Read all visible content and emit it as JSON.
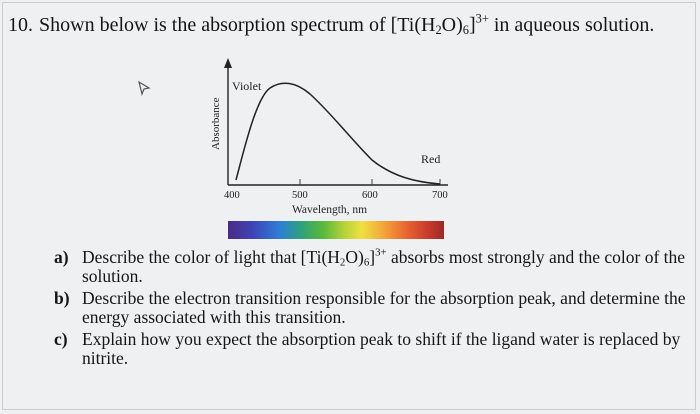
{
  "question": {
    "number": "10.",
    "text_before": "Shown below is the absorption spectrum of [Ti(H",
    "sub1": "2",
    "text_mid1": "O)",
    "sub2": "6",
    "text_mid2": "]",
    "sup": "3+",
    "text_after": " in aqueous solution."
  },
  "figure": {
    "y_axis_label": "Absorbance",
    "violet_label": "Violet",
    "red_label": "Red",
    "tick_400": "400",
    "tick_500": "500",
    "tick_600": "600",
    "tick_700": "700",
    "x_axis_label": "Wavelength, nm"
  },
  "parts": [
    {
      "letter": "a)",
      "pre": "Describe the color of light that [Ti(H",
      "sub1": "2",
      "mid1": "O)",
      "sub2": "6",
      "mid2": "]",
      "sup": "3+",
      "post": " absorbs most strongly and the color of the solution."
    },
    {
      "letter": "b)",
      "text": "Describe the electron transition responsible for the absorption peak, and determine the energy associated with this transition."
    },
    {
      "letter": "c)",
      "text": "Explain how you expect the absorption peak to shift if the ligand water is replaced by nitrite."
    }
  ]
}
